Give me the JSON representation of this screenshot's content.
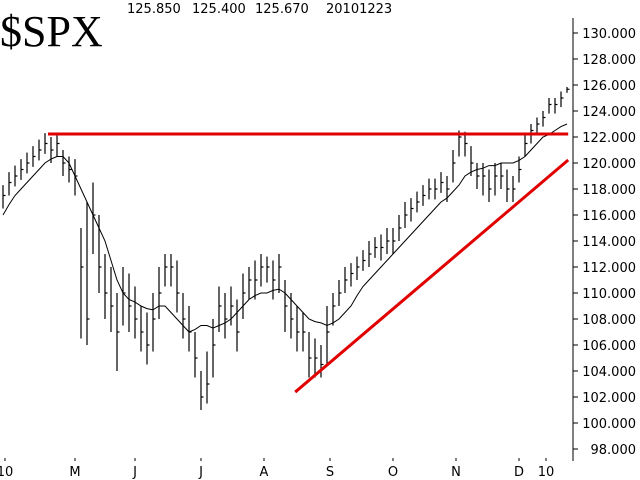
{
  "chart_data": {
    "type": "ohlc",
    "title": "$SPX",
    "header_high": {
      "value": 125.85,
      "label": "125.850"
    },
    "header_low": {
      "value": 125.4,
      "label": "125.400"
    },
    "header_close": {
      "value": 125.67,
      "label": "125.670"
    },
    "header_date": "20101223",
    "color": "#000000",
    "high": [
      118.3,
      119.3,
      119.8,
      120.3,
      120.8,
      121.3,
      121.8,
      122.3,
      122,
      122.3,
      121,
      120.5,
      120.3,
      115,
      117,
      118.5,
      116,
      113,
      112,
      110,
      112,
      111.5,
      110.5,
      109,
      108.5,
      110,
      112,
      113,
      113,
      112.5,
      110,
      109,
      107,
      104,
      105.5,
      108,
      110.5,
      110,
      110.5,
      109.5,
      111.5,
      112,
      112.5,
      113,
      112.8,
      112.5,
      113,
      111,
      110,
      109,
      108.5,
      107,
      106.5,
      106,
      109,
      110,
      111,
      112,
      112.3,
      112.8,
      113.3,
      114,
      114.3,
      114.5,
      115,
      115,
      116,
      117,
      117.3,
      117.8,
      118.3,
      118.8,
      118.8,
      119.3,
      119,
      121,
      122.5,
      122.4,
      121.3,
      120,
      120,
      119.5,
      120,
      120,
      119.5,
      119,
      120.5,
      122.3,
      123,
      123.5,
      124,
      125,
      125,
      125.5,
      125.85
    ],
    "low": [
      116.5,
      117.5,
      118.2,
      118.7,
      119.2,
      119.7,
      120.2,
      120.7,
      120,
      120.5,
      119,
      118.5,
      117.5,
      106.5,
      106,
      113,
      110,
      108,
      107,
      104,
      107.5,
      107,
      106.5,
      105.5,
      104.5,
      105.5,
      108,
      110.5,
      110.5,
      108.5,
      106.5,
      105.5,
      103.5,
      101,
      101.5,
      103.5,
      107,
      106.5,
      107.5,
      105.5,
      108,
      109.5,
      109.5,
      110.5,
      110.8,
      109.5,
      110,
      107,
      106.5,
      105.5,
      105.5,
      103.5,
      103.5,
      103.5,
      104.5,
      107.5,
      109,
      110,
      110.5,
      111,
      111.7,
      112,
      112.7,
      112.5,
      113,
      113,
      114,
      115,
      115.5,
      116.2,
      116.7,
      117.2,
      117.2,
      117.7,
      117,
      118.5,
      120.5,
      120.5,
      119,
      118,
      117.5,
      117,
      117.5,
      118,
      117,
      117,
      118.5,
      120.5,
      121.5,
      122.2,
      122.8,
      123.8,
      123.8,
      124.3,
      125.4
    ],
    "close": [
      117.5,
      118.5,
      119,
      119.5,
      120,
      120.5,
      121,
      121.5,
      121,
      121.5,
      120,
      119.5,
      119,
      112,
      108,
      116,
      112,
      110,
      109,
      107,
      110,
      109,
      108,
      107,
      106,
      108,
      110,
      112,
      112,
      110,
      108,
      107,
      105,
      102,
      103,
      106,
      109,
      108,
      109,
      107,
      110,
      111,
      111,
      112,
      112,
      111,
      112,
      109,
      108,
      107,
      107,
      105,
      105,
      104.5,
      107,
      109,
      110,
      111,
      111.5,
      112,
      112.5,
      113,
      113.5,
      113.5,
      114,
      114,
      115,
      116,
      116.5,
      117,
      117.5,
      118,
      118,
      118.5,
      118,
      120,
      122,
      121.5,
      120,
      119,
      119,
      118,
      119,
      119,
      118,
      118,
      119.5,
      121.5,
      122.5,
      123,
      123.5,
      124.5,
      124.5,
      125,
      125.67
    ],
    "moving_average": [
      116,
      116.8,
      117.5,
      118,
      118.5,
      119,
      119.5,
      120,
      120.3,
      120.5,
      120.5,
      120,
      119,
      118,
      117,
      116,
      115,
      114,
      112.5,
      111,
      110,
      109.5,
      109.3,
      109,
      108.8,
      108.7,
      109,
      109,
      108.5,
      108,
      107.5,
      107,
      107.2,
      107.5,
      107.5,
      107.3,
      107.5,
      107.7,
      108,
      108.5,
      109,
      109.5,
      109.8,
      110,
      110,
      110.2,
      110.3,
      110,
      109.5,
      109,
      108.5,
      108,
      107.8,
      107.7,
      107.5,
      107.7,
      108,
      108.5,
      109,
      109.8,
      110.5,
      111,
      111.5,
      112,
      112.5,
      113,
      113.5,
      114,
      114.5,
      115,
      115.5,
      116,
      116.5,
      117,
      117.3,
      117.8,
      118.3,
      119,
      119.3,
      119.5,
      119.6,
      119.8,
      119.8,
      120,
      120,
      120,
      120.2,
      120.5,
      121,
      121.5,
      122,
      122.2,
      122.5,
      122.8,
      123
    ],
    "ma_color": "#000000",
    "annotations": [
      {
        "x": [
          7.5,
          94.2
        ],
        "y": [
          122.23,
          122.23
        ],
        "color": "#e00000"
      },
      {
        "x": [
          48.7,
          94.2
        ],
        "y": [
          102.38,
          120.23
        ],
        "color": "#e00000"
      }
    ],
    "xlim": [
      -0.5,
      95.5
    ],
    "xticks": [
      {
        "value": 0.33,
        "label": "10"
      },
      {
        "value": 12,
        "label": "M"
      },
      {
        "value": 22,
        "label": "J"
      },
      {
        "value": 33,
        "label": "J"
      },
      {
        "value": 43.5,
        "label": "A"
      },
      {
        "value": 54.5,
        "label": "S"
      },
      {
        "value": 65,
        "label": "O"
      },
      {
        "value": 75.5,
        "label": "N"
      },
      {
        "value": 86,
        "label": "D"
      },
      {
        "value": 90.5,
        "label": "10"
      }
    ],
    "ylim": [
      97.1,
      131.1
    ],
    "yticks": [
      {
        "value": 98,
        "label": "98.000"
      },
      {
        "value": 100,
        "label": "100.000"
      },
      {
        "value": 102,
        "label": "102.000"
      },
      {
        "value": 104,
        "label": "104.000"
      },
      {
        "value": 106,
        "label": "106.000"
      },
      {
        "value": 108,
        "label": "108.000"
      },
      {
        "value": 110,
        "label": "110.000"
      },
      {
        "value": 112,
        "label": "112.000"
      },
      {
        "value": 114,
        "label": "114.000"
      },
      {
        "value": 116,
        "label": "116.000"
      },
      {
        "value": 118,
        "label": "118.000"
      },
      {
        "value": 120,
        "label": "120.000"
      },
      {
        "value": 122,
        "label": "122.000"
      },
      {
        "value": 124,
        "label": "124.000"
      },
      {
        "value": 126,
        "label": "126.000"
      },
      {
        "value": 128,
        "label": "128.000"
      },
      {
        "value": 130,
        "label": "130.000"
      }
    ]
  }
}
